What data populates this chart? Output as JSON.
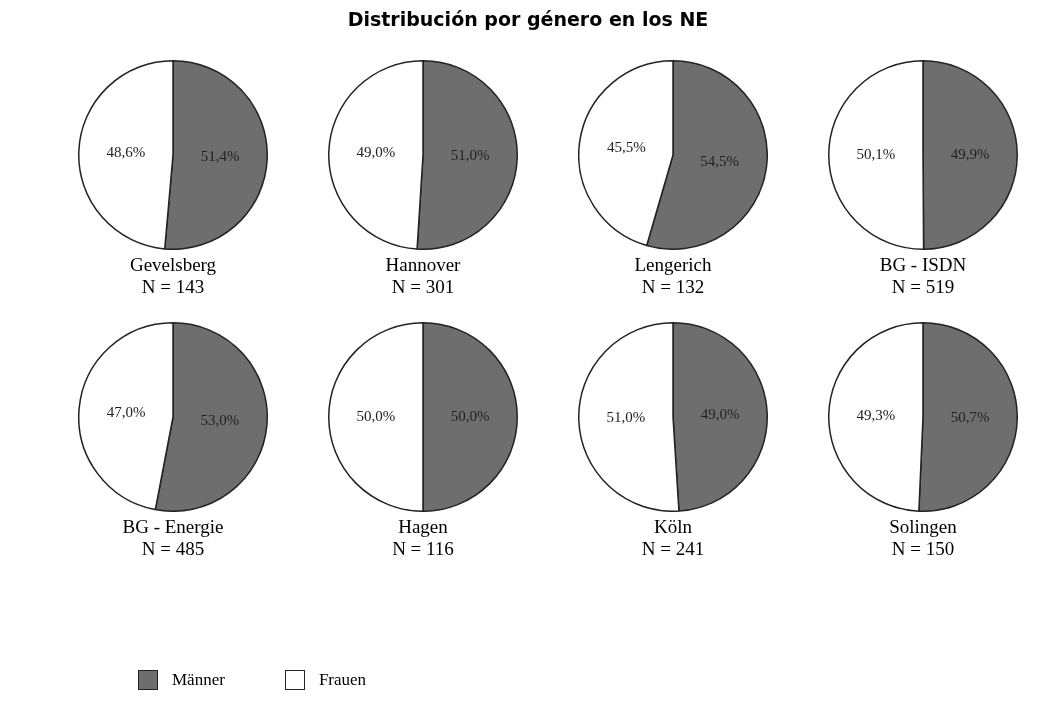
{
  "chart_data": [
    {
      "type": "other",
      "title": "Distribución por género en los NE"
    },
    {
      "type": "pie",
      "title": "Gevelsberg",
      "subtitle": "N = 143",
      "categories": [
        "Männer",
        "Frauen"
      ],
      "values": [
        51.4,
        48.6
      ],
      "value_labels": [
        "51,4%",
        "48,6%"
      ],
      "colors": [
        "#6e6e6e",
        "#ffffff"
      ],
      "legend": "bottom"
    },
    {
      "type": "pie",
      "title": "Hannover",
      "subtitle": "N = 301",
      "categories": [
        null,
        null
      ],
      "values": [
        51.0,
        49.0
      ],
      "value_labels": [
        "51,0%",
        "49,0%"
      ],
      "colors": [
        "#6e6e6e",
        "#ffffff"
      ]
    },
    {
      "type": "pie",
      "title": "Lengerich",
      "subtitle": "N = 132",
      "categories": [
        null,
        null
      ],
      "values": [
        54.5,
        45.5
      ],
      "value_labels": [
        "54,5%",
        "45,5%"
      ],
      "colors": [
        "#6e6e6e",
        "#ffffff"
      ]
    },
    {
      "type": "pie",
      "title": "BG - ISDN",
      "subtitle": "N = 519",
      "categories": [
        null,
        null
      ],
      "values": [
        49.9,
        50.1
      ],
      "value_labels": [
        "49,9%",
        "50,1%"
      ],
      "colors": [
        "#6e6e6e",
        "#ffffff"
      ]
    },
    {
      "type": "pie",
      "title": "BG - Energie",
      "subtitle": "N = 485",
      "categories": [
        null,
        null
      ],
      "values": [
        53.0,
        47.0
      ],
      "value_labels": [
        "53,0%",
        "47,0%"
      ],
      "colors": [
        "#6e6e6e",
        "#ffffff"
      ]
    },
    {
      "type": "pie",
      "title": "Hagen",
      "subtitle": "N = 116",
      "categories": [
        null,
        null
      ],
      "values": [
        50.0,
        50.0
      ],
      "value_labels": [
        "50,0%",
        "50,0%"
      ],
      "colors": [
        "#6e6e6e",
        "#ffffff"
      ]
    },
    {
      "type": "pie",
      "title": "Köln",
      "subtitle": "N = 241",
      "categories": [
        null,
        null
      ],
      "values": [
        49.0,
        51.0
      ],
      "value_labels": [
        "49,0%",
        "51,0%"
      ],
      "colors": [
        "#6e6e6e",
        "#ffffff"
      ]
    },
    {
      "type": "pie",
      "title": "Solingen",
      "subtitle": "N = 150",
      "categories": [
        null,
        null
      ],
      "values": [
        50.7,
        49.3
      ],
      "value_labels": [
        "50,7%",
        "49,3%"
      ],
      "colors": [
        "#6e6e6e",
        "#ffffff"
      ]
    }
  ]
}
